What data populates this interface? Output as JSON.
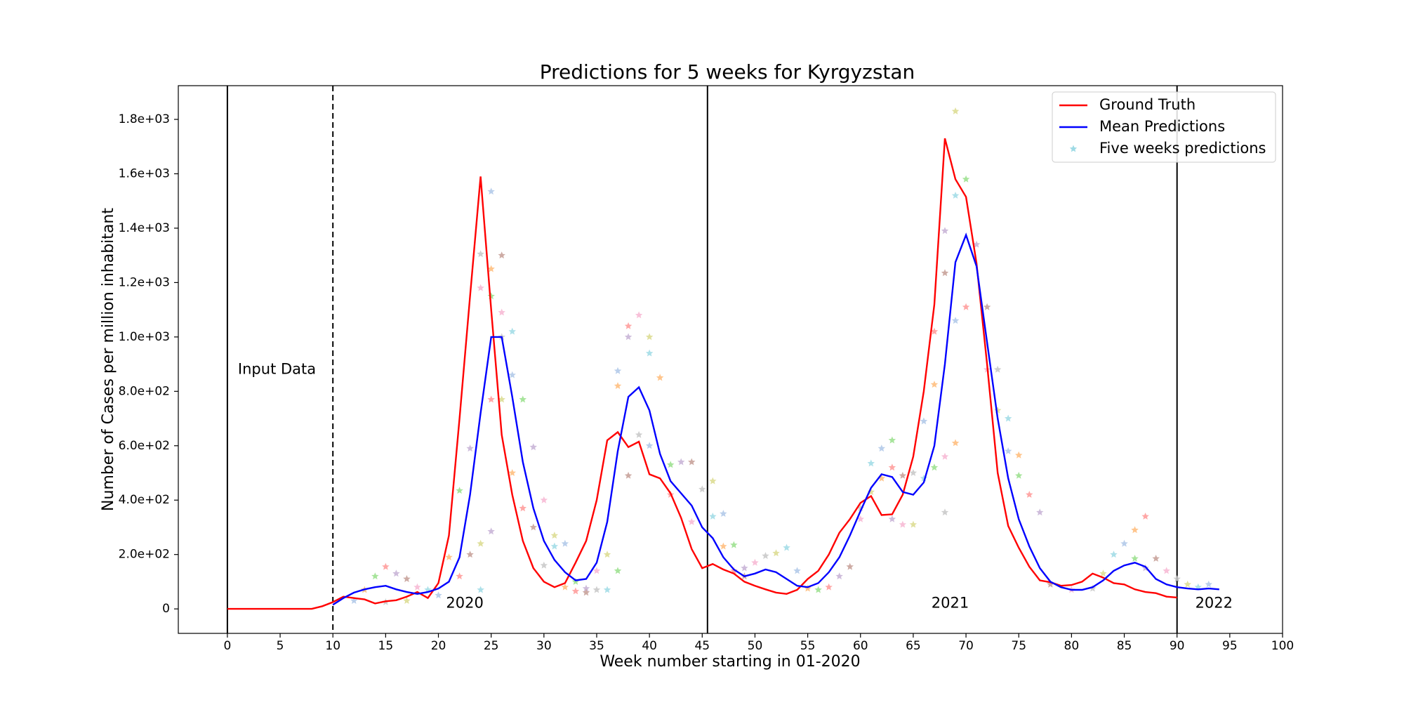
{
  "chart_data": {
    "type": "line",
    "title": "Predictions for 5 weeks for Kyrgyzstan",
    "x_label": "Week number starting in 01-2020",
    "y_label": "Number of Cases per million inhabitant",
    "xlim": [
      -4.65,
      100
    ],
    "ylim": [
      -90,
      1924
    ],
    "xticks": [
      0,
      5,
      10,
      15,
      20,
      25,
      30,
      35,
      40,
      45,
      50,
      55,
      60,
      65,
      70,
      75,
      80,
      85,
      90,
      95,
      100
    ],
    "yticks": [
      0,
      {
        "value": 200,
        "label": "2.0e+02"
      },
      {
        "value": 400,
        "label": "4.0e+02"
      },
      {
        "value": 600,
        "label": "6.0e+02"
      },
      {
        "value": 800,
        "label": "8.0e+02"
      },
      {
        "value": 1000,
        "label": "1.0e+03"
      },
      {
        "value": 1200,
        "label": "1.2e+03"
      },
      {
        "value": 1400,
        "label": "1.4e+03"
      },
      {
        "value": 1600,
        "label": "1.6e+03"
      },
      {
        "value": 1800,
        "label": "1.8e+03"
      }
    ],
    "legend": "upper right",
    "vlines": [
      0,
      10,
      45.5,
      90
    ],
    "vline_dashed": [
      false,
      true,
      false,
      false
    ],
    "annotations": [
      "Input Data",
      "2020",
      "2021",
      "2022"
    ],
    "series": [
      {
        "name": "Ground Truth",
        "color": "#ff0000",
        "x": [
          0,
          1,
          2,
          3,
          4,
          5,
          6,
          7,
          8,
          9,
          10,
          11,
          12,
          13,
          14,
          15,
          16,
          17,
          18,
          19,
          20,
          21,
          22,
          23,
          24,
          25,
          26,
          27,
          28,
          29,
          30,
          31,
          32,
          33,
          34,
          35,
          36,
          37,
          38,
          39,
          40,
          41,
          42,
          43,
          44,
          45,
          46,
          47,
          48,
          49,
          50,
          51,
          52,
          53,
          54,
          55,
          56,
          57,
          58,
          59,
          60,
          61,
          62,
          63,
          64,
          65,
          66,
          67,
          68,
          69,
          70,
          71,
          72,
          73,
          74,
          75,
          76,
          77,
          78,
          79,
          80,
          81,
          82,
          83,
          84,
          85,
          86,
          87,
          88,
          89,
          90
        ],
        "values": [
          0,
          0,
          0,
          0,
          0,
          0,
          0,
          0,
          0,
          10,
          25,
          45,
          40,
          35,
          20,
          28,
          32,
          45,
          62,
          40,
          95,
          270,
          700,
          1150,
          1590,
          1100,
          640,
          420,
          250,
          150,
          100,
          80,
          95,
          170,
          250,
          400,
          620,
          650,
          595,
          615,
          495,
          480,
          425,
          335,
          220,
          150,
          165,
          145,
          130,
          100,
          85,
          72,
          60,
          55,
          70,
          110,
          140,
          200,
          280,
          330,
          390,
          415,
          345,
          348,
          420,
          560,
          800,
          1120,
          1730,
          1580,
          1515,
          1270,
          900,
          500,
          305,
          225,
          155,
          105,
          98,
          85,
          88,
          100,
          130,
          115,
          95,
          90,
          72,
          62,
          58,
          45,
          42
        ]
      },
      {
        "name": "Mean Predictions",
        "color": "#0000ff",
        "x": [
          10,
          11,
          12,
          13,
          14,
          15,
          16,
          17,
          18,
          19,
          20,
          21,
          22,
          23,
          24,
          25,
          26,
          27,
          28,
          29,
          30,
          31,
          32,
          33,
          34,
          35,
          36,
          37,
          38,
          39,
          40,
          41,
          42,
          43,
          44,
          45,
          46,
          47,
          48,
          49,
          50,
          51,
          52,
          53,
          54,
          55,
          56,
          57,
          58,
          59,
          60,
          61,
          62,
          63,
          64,
          65,
          66,
          67,
          68,
          69,
          70,
          71,
          72,
          73,
          74,
          75,
          76,
          77,
          78,
          79,
          80,
          81,
          82,
          83,
          84,
          85,
          86,
          87,
          88,
          89,
          90,
          91,
          92,
          93,
          94
        ],
        "values": [
          15,
          40,
          60,
          72,
          80,
          85,
          72,
          62,
          55,
          62,
          75,
          100,
          190,
          420,
          720,
          1000,
          1000,
          780,
          540,
          370,
          250,
          180,
          135,
          105,
          110,
          170,
          320,
          580,
          780,
          815,
          730,
          570,
          470,
          425,
          380,
          300,
          260,
          190,
          145,
          120,
          130,
          145,
          135,
          110,
          85,
          80,
          95,
          135,
          190,
          270,
          360,
          445,
          495,
          485,
          430,
          420,
          465,
          600,
          900,
          1275,
          1375,
          1260,
          980,
          700,
          480,
          330,
          230,
          150,
          100,
          80,
          70,
          70,
          80,
          105,
          140,
          160,
          170,
          155,
          110,
          90,
          80,
          75,
          72,
          75,
          72
        ]
      },
      {
        "name": "Five weeks predictions",
        "type": "scatter",
        "color": "#9edae5",
        "colors": [
          "#aec7e8",
          "#ffbb78",
          "#98df8a",
          "#ff9896",
          "#c5b0d5",
          "#c49c94",
          "#f7b6d2",
          "#c7c7c7",
          "#dbdb8d",
          "#9edae5"
        ],
        "x": [
          12,
          13,
          14,
          15,
          16,
          17,
          18,
          15,
          17,
          19,
          20,
          21,
          22,
          22,
          23,
          23,
          24,
          24,
          24,
          24,
          25,
          25,
          25,
          25,
          25,
          26,
          26,
          26,
          26,
          27,
          27,
          27,
          28,
          28,
          29,
          29,
          30,
          30,
          31,
          31,
          32,
          32,
          33,
          33,
          34,
          34,
          35,
          35,
          36,
          36,
          37,
          37,
          37,
          38,
          38,
          38,
          39,
          39,
          40,
          40,
          40,
          41,
          42,
          42,
          43,
          44,
          44,
          45,
          46,
          46,
          47,
          47,
          48,
          48,
          49,
          49,
          50,
          51,
          52,
          53,
          54,
          55,
          56,
          57,
          58,
          59,
          60,
          60,
          61,
          61,
          62,
          62,
          63,
          63,
          63,
          64,
          64,
          65,
          65,
          66,
          66,
          67,
          67,
          67,
          68,
          68,
          68,
          68,
          69,
          69,
          69,
          69,
          70,
          70,
          71,
          72,
          72,
          73,
          73,
          74,
          74,
          75,
          75,
          76,
          77,
          78,
          80,
          82,
          83,
          84,
          85,
          86,
          86,
          87,
          87,
          88,
          89,
          90,
          91,
          92,
          93
        ],
        "values": [
          30,
          70,
          120,
          155,
          130,
          110,
          80,
          25,
          30,
          70,
          50,
          190,
          435,
          120,
          590,
          200,
          1180,
          1305,
          240,
          70,
          1535,
          1250,
          1150,
          770,
          285,
          1300,
          1090,
          1000,
          770,
          1020,
          860,
          500,
          770,
          370,
          595,
          300,
          400,
          160,
          270,
          230,
          240,
          80,
          100,
          65,
          75,
          60,
          140,
          70,
          200,
          70,
          875,
          820,
          140,
          1040,
          1000,
          490,
          1080,
          640,
          1000,
          940,
          600,
          850,
          530,
          420,
          540,
          540,
          320,
          440,
          470,
          340,
          350,
          230,
          235,
          140,
          150,
          120,
          170,
          195,
          205,
          225,
          140,
          75,
          70,
          80,
          120,
          155,
          330,
          370,
          430,
          535,
          590,
          480,
          620,
          520,
          330,
          490,
          310,
          500,
          310,
          480,
          690,
          825,
          520,
          1020,
          1390,
          1235,
          560,
          355,
          1830,
          1520,
          1060,
          610,
          1580,
          1110,
          1340,
          1110,
          880,
          880,
          730,
          700,
          580,
          565,
          490,
          420,
          355,
          90,
          70,
          75,
          130,
          200,
          240,
          290,
          185,
          340,
          150,
          185,
          140,
          110,
          90,
          80,
          90
        ]
      }
    ]
  }
}
